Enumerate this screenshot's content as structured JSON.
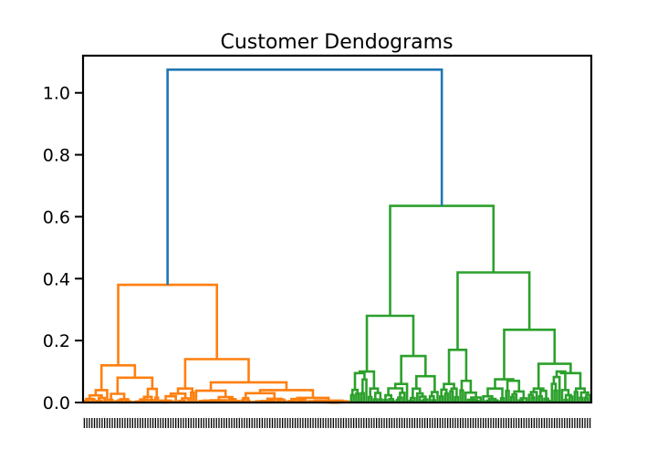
{
  "chart_data": {
    "type": "dendrogram",
    "title": "Customer Dendograms",
    "xlabel": "",
    "ylabel": "",
    "ylim": [
      0,
      1.12
    ],
    "yticks": [
      0.0,
      0.2,
      0.4,
      0.6,
      0.8,
      1.0
    ],
    "ytick_labels": [
      "0.0",
      "0.2",
      "0.4",
      "0.6",
      "0.8",
      "1.0"
    ],
    "leaf_count": 200,
    "x_tick_labels": "dense, illegible",
    "colors": {
      "root": "#1f77b4",
      "cluster_1": "#ff7f0e",
      "cluster_2": "#2ca02c"
    },
    "merges": {
      "root": 1.075,
      "cluster_1": 0.38,
      "cluster_1_left": 0.12,
      "cluster_1_right": 0.14,
      "cluster_2": 0.635,
      "cluster_2_left": 0.28,
      "cluster_2_right": 0.42,
      "cluster_2_right_right": 0.235
    }
  }
}
